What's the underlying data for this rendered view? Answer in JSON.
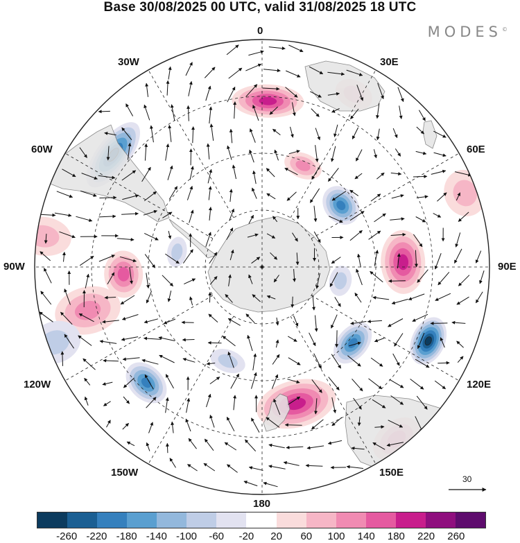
{
  "title": "Base 30/08/2025 00 UTC, valid 31/08/2025 18 UTC",
  "brand": "MODES",
  "brand_mark": "©",
  "longitude_labels": {
    "lon_0": "0",
    "lon_30e": "30E",
    "lon_60e": "60E",
    "lon_90e": "90E",
    "lon_120e": "120E",
    "lon_150e": "150E",
    "lon_180": "180",
    "lon_150w": "150W",
    "lon_120w": "120W",
    "lon_90w": "90W",
    "lon_60w": "60W",
    "lon_30w": "30W"
  },
  "reference_vector": "30",
  "colorbar": {
    "colors": [
      "#0c3b5e",
      "#1b5f93",
      "#3580bd",
      "#5a9fd0",
      "#93b8dc",
      "#bfcde6",
      "#e2e2f0",
      "#ffffff",
      "#fadcdc",
      "#f6b6c6",
      "#f08bb2",
      "#e55aa0",
      "#c81e8c",
      "#8f0f7e",
      "#5e0c6d"
    ],
    "ticks": [
      "-260",
      "-220",
      "-180",
      "-140",
      "-100",
      "-60",
      "-20",
      "20",
      "60",
      "100",
      "140",
      "180",
      "220",
      "260"
    ]
  },
  "anomaly_cells": [
    {
      "lon": 52,
      "r": 0.44,
      "a": 30,
      "b": 24,
      "value": -150
    },
    {
      "lon": 88,
      "r": 0.62,
      "a": 46,
      "b": 32,
      "value": 170
    },
    {
      "lon": 114,
      "r": 0.8,
      "a": 36,
      "b": 24,
      "value": -230
    },
    {
      "lon": 130,
      "r": 0.52,
      "a": 34,
      "b": 22,
      "value": -180
    },
    {
      "lon": 166,
      "r": 0.62,
      "a": 58,
      "b": 34,
      "value": 160
    },
    {
      "lon": 142,
      "r": 0.96,
      "a": 38,
      "b": 26,
      "value": 90
    },
    {
      "lon": 28,
      "r": 0.86,
      "a": 28,
      "b": 20,
      "value": 60
    },
    {
      "lon": 2,
      "r": 0.73,
      "a": 52,
      "b": 24,
      "value": 150
    },
    {
      "lon": -53,
      "r": 0.82,
      "a": 56,
      "b": 24,
      "value": -220
    },
    {
      "lon": -93,
      "r": 0.61,
      "a": 34,
      "b": 28,
      "value": 110
    },
    {
      "lon": -104,
      "r": 0.79,
      "a": 34,
      "b": 48,
      "value": 80
    },
    {
      "lon": -135,
      "r": 0.72,
      "a": 34,
      "b": 24,
      "value": -150
    },
    {
      "lon": 22,
      "r": 0.48,
      "a": 28,
      "b": 18,
      "value": 70
    },
    {
      "lon": -80,
      "r": 0.38,
      "a": 22,
      "b": 14,
      "value": -60
    },
    {
      "lon": -160,
      "r": 0.44,
      "a": 26,
      "b": 16,
      "value": -40
    },
    {
      "lon": -110,
      "r": 0.97,
      "a": 30,
      "b": 38,
      "value": -50
    },
    {
      "lon": -82,
      "r": 0.97,
      "a": 28,
      "b": 40,
      "value": 60
    },
    {
      "lon": 70,
      "r": 0.95,
      "a": 34,
      "b": 30,
      "value": 60
    },
    {
      "lon": 100,
      "r": 0.35,
      "a": 22,
      "b": 16,
      "value": -40
    }
  ]
}
